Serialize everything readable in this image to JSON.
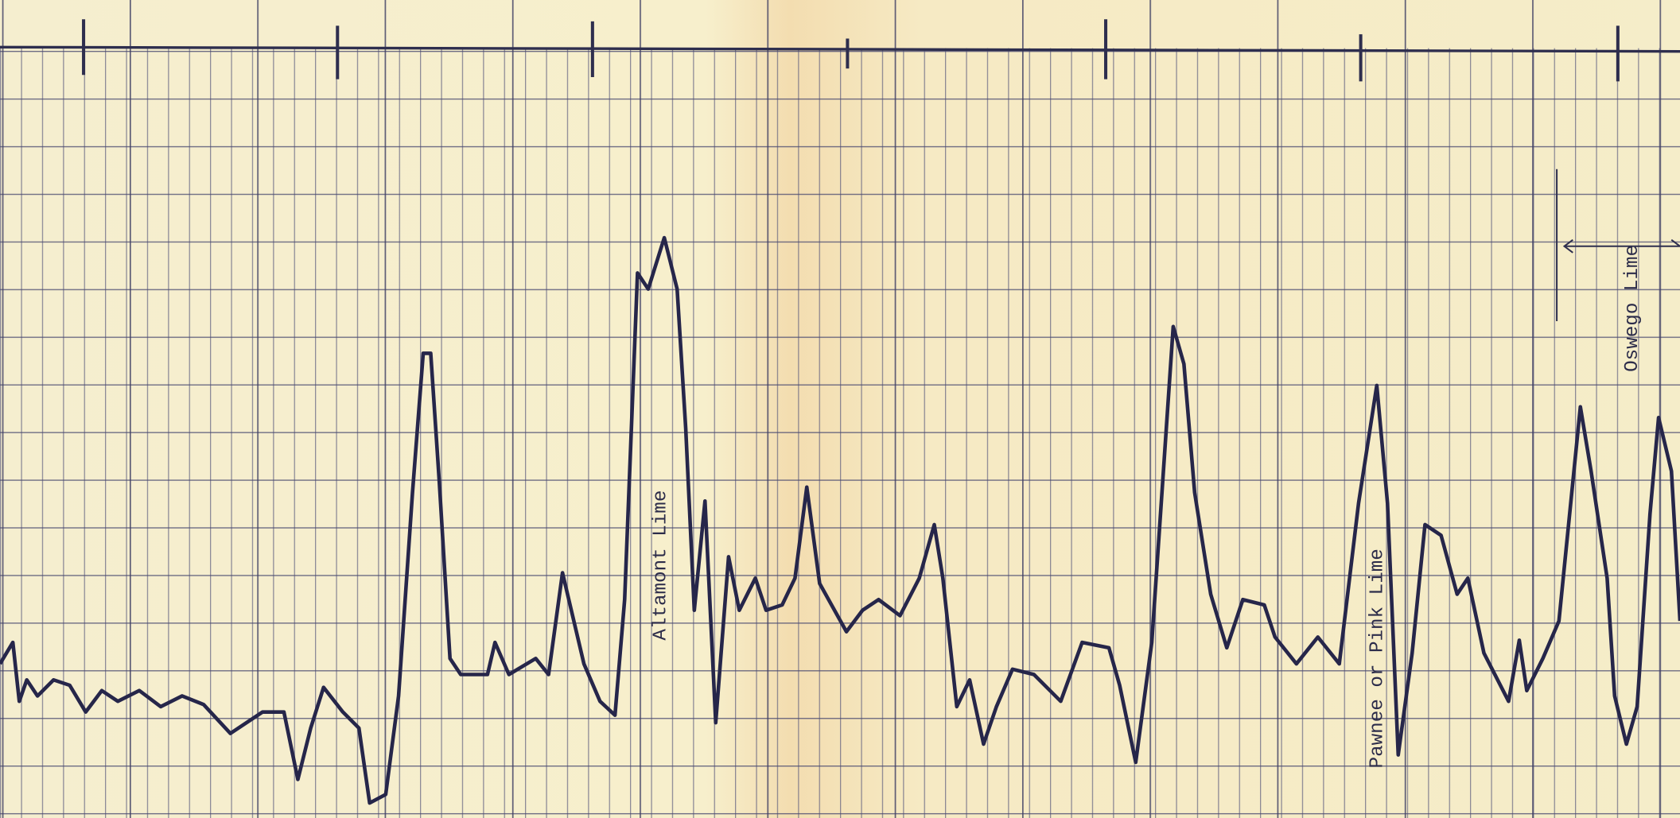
{
  "annotations": {
    "altamont": "Altamont Lime",
    "pawnee": "Pawnee or Pink Lime",
    "oswego": "Oswego Lime"
  }
}
